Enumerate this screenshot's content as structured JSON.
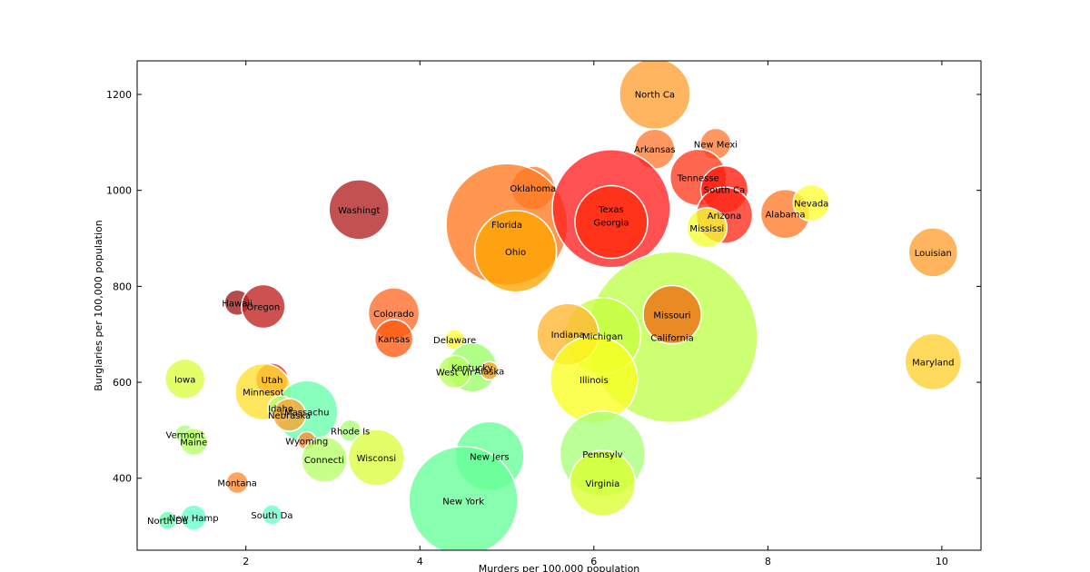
{
  "chart_data": {
    "type": "scatter",
    "xlabel": "Murders per 100,000 population",
    "ylabel": "Burglaries per 100,000 population",
    "xlim": [
      0.75,
      10.45
    ],
    "ylim": [
      250,
      1270
    ],
    "xticks": [
      2,
      4,
      6,
      8,
      10
    ],
    "yticks": [
      400,
      600,
      800,
      1000,
      1200
    ],
    "grid": false,
    "points": [
      {
        "label": "North Ca",
        "x": 6.7,
        "y": 1201,
        "r": 39,
        "color": "#FFA033"
      },
      {
        "label": "New Mexi",
        "x": 7.4,
        "y": 1097,
        "r": 17,
        "color": "#FF7A33"
      },
      {
        "label": "Arkansas",
        "x": 6.7,
        "y": 1086,
        "r": 22,
        "color": "#FF7A33"
      },
      {
        "label": "Tennesse",
        "x": 7.2,
        "y": 1027,
        "r": 31,
        "color": "#FF3B1F"
      },
      {
        "label": "South Ca",
        "x": 7.5,
        "y": 1002,
        "r": 26,
        "color": "#FF1A0A"
      },
      {
        "label": "Arizona",
        "x": 7.5,
        "y": 948,
        "r": 31,
        "color": "#FF2A1A"
      },
      {
        "label": "Mississi",
        "x": 7.3,
        "y": 922,
        "r": 22,
        "color": "#F5FF33"
      },
      {
        "label": "Alabama",
        "x": 8.2,
        "y": 951,
        "r": 27,
        "color": "#FF7A2A"
      },
      {
        "label": "Nevada",
        "x": 8.5,
        "y": 974,
        "r": 20,
        "color": "#FFFF33"
      },
      {
        "label": "Louisian",
        "x": 9.9,
        "y": 871,
        "r": 27,
        "color": "#FFA030"
      },
      {
        "label": "Maryland",
        "x": 9.9,
        "y": 643,
        "r": 31,
        "color": "#FFD030"
      },
      {
        "label": "Washingt",
        "x": 3.3,
        "y": 960,
        "r": 33,
        "color": "#B32020"
      },
      {
        "label": "Oklahoma",
        "x": 5.3,
        "y": 1005,
        "r": 24,
        "color": "#FF7A2A"
      },
      {
        "label": "Florida",
        "x": 5.0,
        "y": 929,
        "r": 67,
        "color": "#FF7A20"
      },
      {
        "label": "Ohio",
        "x": 5.1,
        "y": 873,
        "r": 45,
        "color": "#FFA500"
      },
      {
        "label": "Texas",
        "x": 6.2,
        "y": 962,
        "r": 65,
        "color": "#FF2020"
      },
      {
        "label": "Georgia",
        "x": 6.2,
        "y": 934,
        "r": 40,
        "color": "#FF2A0A"
      },
      {
        "label": "California",
        "x": 6.9,
        "y": 694,
        "r": 94,
        "color": "#BFFF4A"
      },
      {
        "label": "Missouri",
        "x": 6.9,
        "y": 741,
        "r": 32,
        "color": "#F06A10"
      },
      {
        "label": "Michigan",
        "x": 6.1,
        "y": 697,
        "r": 42,
        "color": "#C8FF40"
      },
      {
        "label": "Indiana",
        "x": 5.7,
        "y": 700,
        "r": 34,
        "color": "#FFB630"
      },
      {
        "label": "Illinois",
        "x": 6.0,
        "y": 606,
        "r": 48,
        "color": "#FAFF20"
      },
      {
        "label": "Pennsylv",
        "x": 6.1,
        "y": 451,
        "r": 47,
        "color": "#A8FF78"
      },
      {
        "label": "Virginia",
        "x": 6.1,
        "y": 390,
        "r": 36,
        "color": "#DAFF30"
      },
      {
        "label": "New Jers",
        "x": 4.8,
        "y": 446,
        "r": 38,
        "color": "#66FF99"
      },
      {
        "label": "New York",
        "x": 4.5,
        "y": 353,
        "r": 60,
        "color": "#66FF99"
      },
      {
        "label": "Delaware",
        "x": 4.4,
        "y": 689,
        "r": 11,
        "color": "#FFFF33"
      },
      {
        "label": "Kentucky",
        "x": 4.6,
        "y": 631,
        "r": 27,
        "color": "#99FF66"
      },
      {
        "label": "Alaska",
        "x": 4.8,
        "y": 624,
        "r": 10,
        "color": "#FFA030"
      },
      {
        "label": "West Vir",
        "x": 4.4,
        "y": 622,
        "r": 18,
        "color": "#B8FF5A"
      },
      {
        "label": "Colorado",
        "x": 3.7,
        "y": 744,
        "r": 28,
        "color": "#FF6A2A"
      },
      {
        "label": "Kansas",
        "x": 3.7,
        "y": 691,
        "r": 21,
        "color": "#FF5A10"
      },
      {
        "label": "Hawaii",
        "x": 1.9,
        "y": 766,
        "r": 14,
        "color": "#A01818"
      },
      {
        "label": "Oregon",
        "x": 2.2,
        "y": 758,
        "r": 24,
        "color": "#C02020"
      },
      {
        "label": "Iowa",
        "x": 1.3,
        "y": 607,
        "r": 22,
        "color": "#DAFF40"
      },
      {
        "label": "Utah",
        "x": 2.3,
        "y": 606,
        "r": 18,
        "color": "#FF2A1A"
      },
      {
        "label": "Minnesot",
        "x": 2.2,
        "y": 580,
        "r": 31,
        "color": "#FFE030"
      },
      {
        "label": "Massachu",
        "x": 2.7,
        "y": 539,
        "r": 34,
        "color": "#66FFAA"
      },
      {
        "label": "Idaho",
        "x": 2.4,
        "y": 546,
        "r": 14,
        "color": "#B8FF66"
      },
      {
        "label": "Nebraska",
        "x": 2.5,
        "y": 532,
        "r": 18,
        "color": "#FFA030"
      },
      {
        "label": "Rhode Is",
        "x": 3.2,
        "y": 499,
        "r": 12,
        "color": "#A8FF78"
      },
      {
        "label": "Wyoming",
        "x": 2.7,
        "y": 478,
        "r": 10,
        "color": "#FF8A30"
      },
      {
        "label": "Connecti",
        "x": 2.9,
        "y": 439,
        "r": 25,
        "color": "#B8FF6A"
      },
      {
        "label": "Wisconsi",
        "x": 3.5,
        "y": 443,
        "r": 31,
        "color": "#DAFF40"
      },
      {
        "label": "Vermont",
        "x": 1.3,
        "y": 491,
        "r": 11,
        "color": "#A8FF78"
      },
      {
        "label": "Maine",
        "x": 1.4,
        "y": 476,
        "r": 15,
        "color": "#B8FF66"
      },
      {
        "label": "Montana",
        "x": 1.9,
        "y": 391,
        "r": 12,
        "color": "#FF8A30"
      },
      {
        "label": "South Da",
        "x": 2.3,
        "y": 324,
        "r": 11,
        "color": "#66FFCC"
      },
      {
        "label": "New Hamp",
        "x": 1.4,
        "y": 318,
        "r": 14,
        "color": "#66FFCC"
      },
      {
        "label": "North Da",
        "x": 1.1,
        "y": 312,
        "r": 10,
        "color": "#66FFB0"
      }
    ]
  }
}
